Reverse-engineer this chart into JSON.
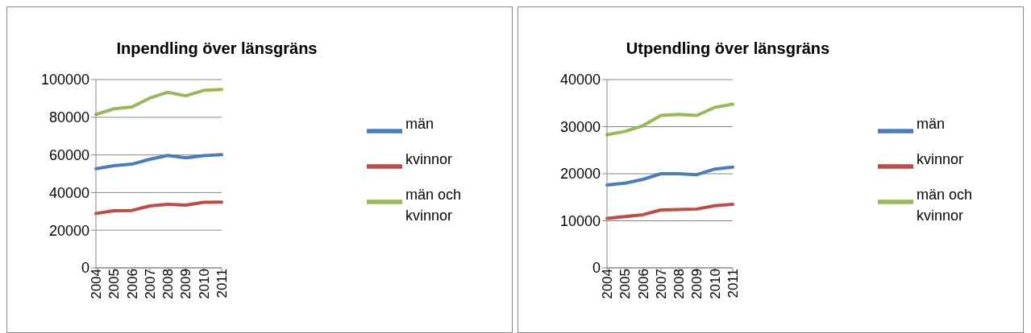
{
  "chart_data": [
    {
      "type": "line",
      "title": "Inpendling över länsgräns",
      "categories": [
        "2004",
        "2005",
        "2006",
        "2007",
        "2008",
        "2009",
        "2010",
        "2011"
      ],
      "series": [
        {
          "name": "män",
          "color": "#4a7ebb",
          "values": [
            52700,
            54300,
            55100,
            57700,
            59700,
            58400,
            59600,
            60100
          ]
        },
        {
          "name": "kvinnor",
          "color": "#be4b48",
          "values": [
            28900,
            30300,
            30500,
            32900,
            33800,
            33300,
            34800,
            34900
          ]
        },
        {
          "name": "män och kvinnor",
          "color": "#98b954",
          "values": [
            81500,
            84500,
            85500,
            90200,
            93300,
            91400,
            94300,
            94800
          ]
        }
      ],
      "ylim": [
        0,
        100000
      ],
      "yticks": [
        0,
        20000,
        40000,
        60000,
        80000,
        100000
      ],
      "grid": "y",
      "legend": "right"
    },
    {
      "type": "line",
      "title": "Utpendling över länsgräns",
      "categories": [
        "2004",
        "2005",
        "2006",
        "2007",
        "2008",
        "2009",
        "2010",
        "2011"
      ],
      "series": [
        {
          "name": "män",
          "color": "#4a7ebb",
          "values": [
            17600,
            18000,
            18800,
            20000,
            20000,
            19800,
            21000,
            21400
          ]
        },
        {
          "name": "kvinnor",
          "color": "#be4b48",
          "values": [
            10500,
            10900,
            11300,
            12300,
            12400,
            12500,
            13200,
            13500
          ]
        },
        {
          "name": "män och kvinnor",
          "color": "#98b954",
          "values": [
            28300,
            29000,
            30200,
            32400,
            32600,
            32400,
            34100,
            34800
          ]
        }
      ],
      "ylim": [
        0,
        40000
      ],
      "yticks": [
        0,
        10000,
        20000,
        30000,
        40000
      ],
      "grid": "y",
      "legend": "right"
    }
  ]
}
